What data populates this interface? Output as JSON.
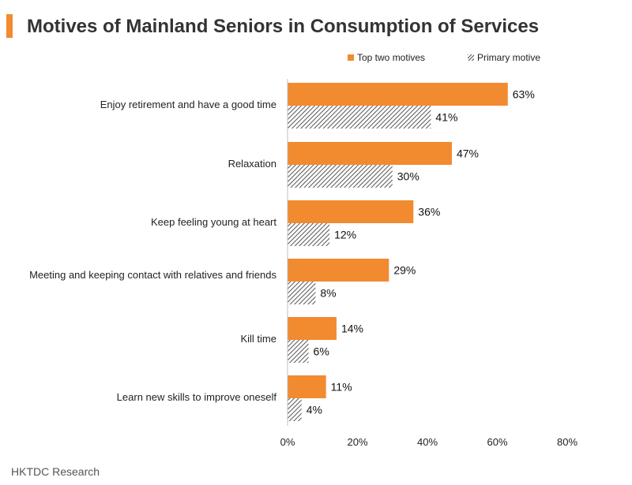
{
  "title": "Motives of Mainland Seniors in Consumption of Services",
  "footer": "HKTDC Research",
  "colors": {
    "accent": "#f28a30",
    "hatch": "#555555"
  },
  "chart_data": {
    "type": "bar",
    "orientation": "horizontal",
    "categories": [
      "Enjoy retirement and have a good time",
      "Relaxation",
      "Keep feeling young at heart",
      "Meeting and keeping contact with relatives and friends",
      "Kill time",
      "Learn new skills to improve oneself"
    ],
    "series": [
      {
        "name": "Top two motives",
        "values": [
          63,
          47,
          36,
          29,
          14,
          11
        ],
        "color": "#f28a30",
        "pattern": "solid"
      },
      {
        "name": "Primary motive",
        "values": [
          41,
          30,
          12,
          8,
          6,
          4
        ],
        "color": "#555555",
        "pattern": "hatched"
      }
    ],
    "value_suffix": "%",
    "xlim": [
      0,
      80
    ],
    "xticks": [
      "0%",
      "20%",
      "40%",
      "60%",
      "80%"
    ],
    "legend": "top-right",
    "grid": false
  }
}
